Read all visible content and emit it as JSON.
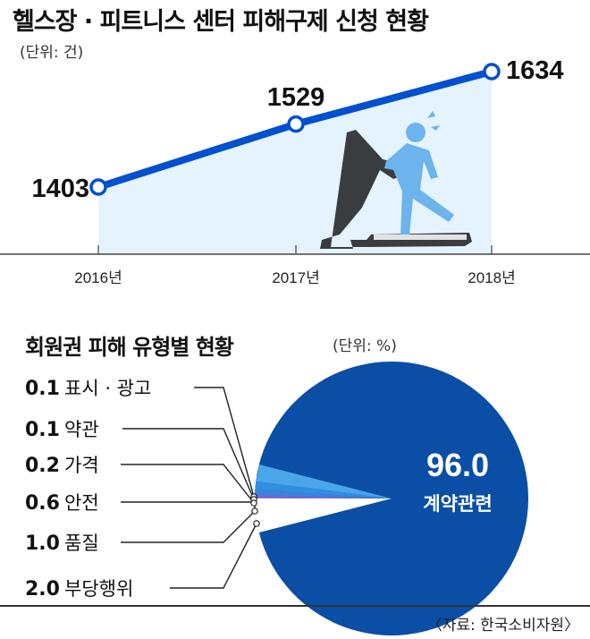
{
  "header": {
    "title": "헬스장 · 피트니스 센터 피해구제 신청 현황",
    "unit": "(단위: 건)"
  },
  "pie_header": {
    "title": "회원권 피해 유형별 현황",
    "unit": "(단위: %)"
  },
  "source": "〈자료: 한국소비자원〉",
  "chart_data": [
    {
      "type": "line",
      "title": "헬스장 · 피트니스 센터 피해구제 신청 현황",
      "unit": "(단위: 건)",
      "categories": [
        "2016년",
        "2017년",
        "2018년"
      ],
      "values": [
        1403,
        1529,
        1634
      ],
      "series_color": "#0050d0",
      "fill_color": "#e4f3fd",
      "grid": false
    },
    {
      "type": "pie",
      "title": "회원권 피해 유형별 현황",
      "unit": "(단위: %)",
      "slices": [
        {
          "label": "계약관련",
          "value": 96.0,
          "color": "#0a4ea6"
        },
        {
          "label": "표시 · 광고",
          "value": 0.1,
          "color": "#c779e6"
        },
        {
          "label": "약관",
          "value": 0.1,
          "color": "#7c4fd6"
        },
        {
          "label": "가격",
          "value": 0.2,
          "color": "#5c78dc"
        },
        {
          "label": "안전",
          "value": 0.6,
          "color": "#3c82d8"
        },
        {
          "label": "품질",
          "value": 1.0,
          "color": "#2f8fe0"
        },
        {
          "label": "부당행위",
          "value": 2.0,
          "color": "#4aa6e8"
        }
      ],
      "main_label_display": [
        "96.0",
        "계약관련"
      ]
    }
  ]
}
